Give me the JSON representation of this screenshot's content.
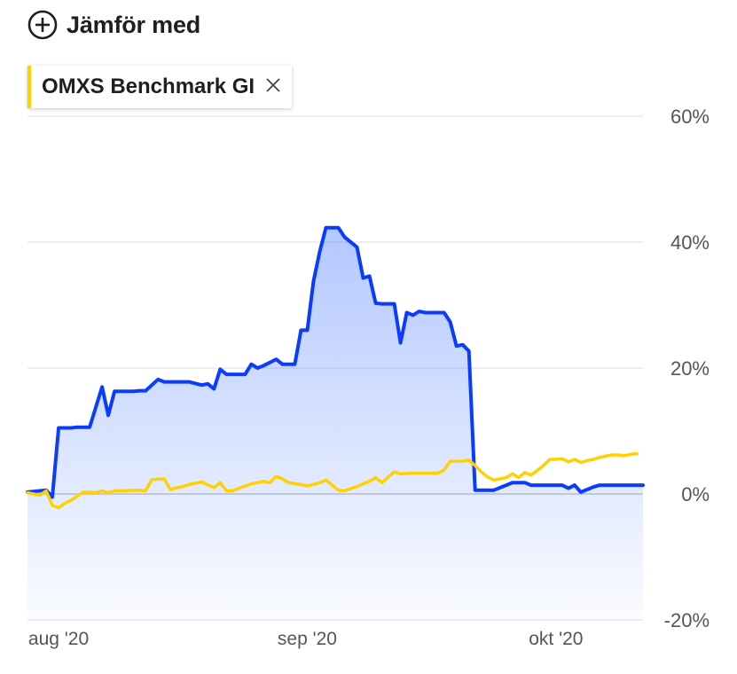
{
  "compare": {
    "label": "Jämför med",
    "icon": "plus-circle-icon"
  },
  "chip": {
    "label": "OMXS Benchmark GI",
    "accent_color": "#ffd100",
    "close_icon": "close-icon"
  },
  "chart_data": {
    "type": "area",
    "title": "",
    "xlabel": "",
    "ylabel": "",
    "unit": "%",
    "ylim": [
      -20,
      60
    ],
    "y_ticks": [
      "60%",
      "40%",
      "20%",
      "0%",
      "-20%"
    ],
    "y_tick_values": [
      60,
      40,
      20,
      0,
      -20
    ],
    "x_ticks": [
      "aug '20",
      "sep '20",
      "okt '20"
    ],
    "x_tick_values": [
      5,
      45,
      85
    ],
    "grid": true,
    "series": [
      {
        "color": "#0a3cff",
        "fill": true,
        "x": [
          0,
          3,
          4,
          5,
          6,
          7,
          8,
          10,
          12,
          13,
          14,
          15,
          17,
          18,
          19,
          21,
          22,
          24,
          25,
          26,
          28,
          29,
          30,
          31,
          32,
          33,
          35,
          36,
          37,
          38,
          40,
          41,
          42,
          43,
          44,
          45,
          46,
          47,
          48,
          50,
          51,
          53,
          54,
          55,
          56,
          57,
          59,
          60,
          61,
          62,
          63,
          64,
          65,
          66,
          67,
          68,
          69,
          70,
          71,
          72,
          73,
          74,
          75,
          77,
          78,
          79,
          80,
          81,
          83,
          84,
          85,
          86,
          87,
          88,
          89,
          91,
          92,
          93,
          94,
          95,
          96,
          97,
          98,
          99
        ],
        "y": [
          0.3,
          0.6,
          -0.5,
          10.5,
          10.5,
          10.5,
          10.6,
          10.6,
          17.0,
          12.5,
          16.3,
          16.3,
          16.3,
          16.4,
          16.4,
          18.2,
          17.8,
          17.8,
          17.8,
          17.8,
          17.3,
          17.5,
          16.7,
          19.8,
          19.0,
          19.0,
          19.0,
          20.6,
          20.0,
          20.4,
          21.4,
          20.6,
          20.6,
          20.6,
          26.0,
          26.0,
          33.8,
          38.5,
          42.3,
          42.3,
          40.8,
          39.2,
          34.3,
          34.6,
          30.3,
          30.2,
          30.2,
          24.0,
          28.8,
          28.4,
          29.0,
          28.8,
          28.8,
          28.8,
          28.8,
          27.3,
          23.5,
          23.7,
          22.7,
          0.6,
          0.6,
          0.6,
          0.6,
          1.4,
          1.8,
          1.8,
          1.8,
          1.4,
          1.4,
          1.4,
          1.4,
          1.4,
          0.9,
          1.4,
          0.3,
          1.1,
          1.4,
          1.4,
          1.4,
          1.4,
          1.4,
          1.4,
          1.4,
          1.4
        ]
      },
      {
        "color": "#ffd100",
        "fill": false,
        "x": [
          0,
          2,
          3,
          4,
          5,
          6,
          7,
          9,
          11,
          12,
          13,
          14,
          15,
          18,
          19,
          20,
          22,
          23,
          25,
          26,
          28,
          30,
          31,
          32,
          33,
          34,
          36,
          38,
          39,
          40,
          41,
          42,
          44,
          45,
          46,
          47,
          48,
          50,
          51,
          53,
          55,
          56,
          57,
          59,
          60,
          62,
          63,
          65,
          66,
          67,
          68,
          69,
          70,
          71,
          72,
          73,
          74,
          75,
          76,
          77,
          78,
          79,
          80,
          81,
          83,
          84,
          85,
          86,
          87,
          88,
          89,
          90,
          91,
          92,
          93,
          94,
          95,
          96,
          97,
          98
        ],
        "y": [
          0.2,
          -0.2,
          0.5,
          -1.8,
          -2.2,
          -1.5,
          -1.0,
          0.3,
          0.2,
          0.5,
          0.2,
          0.5,
          0.5,
          0.6,
          0.5,
          2.3,
          2.4,
          0.7,
          1.2,
          1.5,
          1.9,
          1.0,
          1.8,
          0.5,
          0.5,
          0.9,
          1.6,
          2.0,
          1.8,
          2.8,
          2.4,
          1.8,
          1.5,
          1.3,
          1.5,
          1.8,
          2.2,
          0.6,
          0.5,
          1.2,
          2.0,
          2.6,
          1.8,
          3.5,
          3.2,
          3.3,
          3.3,
          3.3,
          3.3,
          3.8,
          5.2,
          5.2,
          5.2,
          5.4,
          4.5,
          3.5,
          2.7,
          2.2,
          2.4,
          2.6,
          3.2,
          2.6,
          3.4,
          3.0,
          4.5,
          5.5,
          5.5,
          5.6,
          5.1,
          5.5,
          5.0,
          5.3,
          5.5,
          5.8,
          6.0,
          6.2,
          6.2,
          6.1,
          6.3,
          6.4
        ]
      }
    ]
  }
}
